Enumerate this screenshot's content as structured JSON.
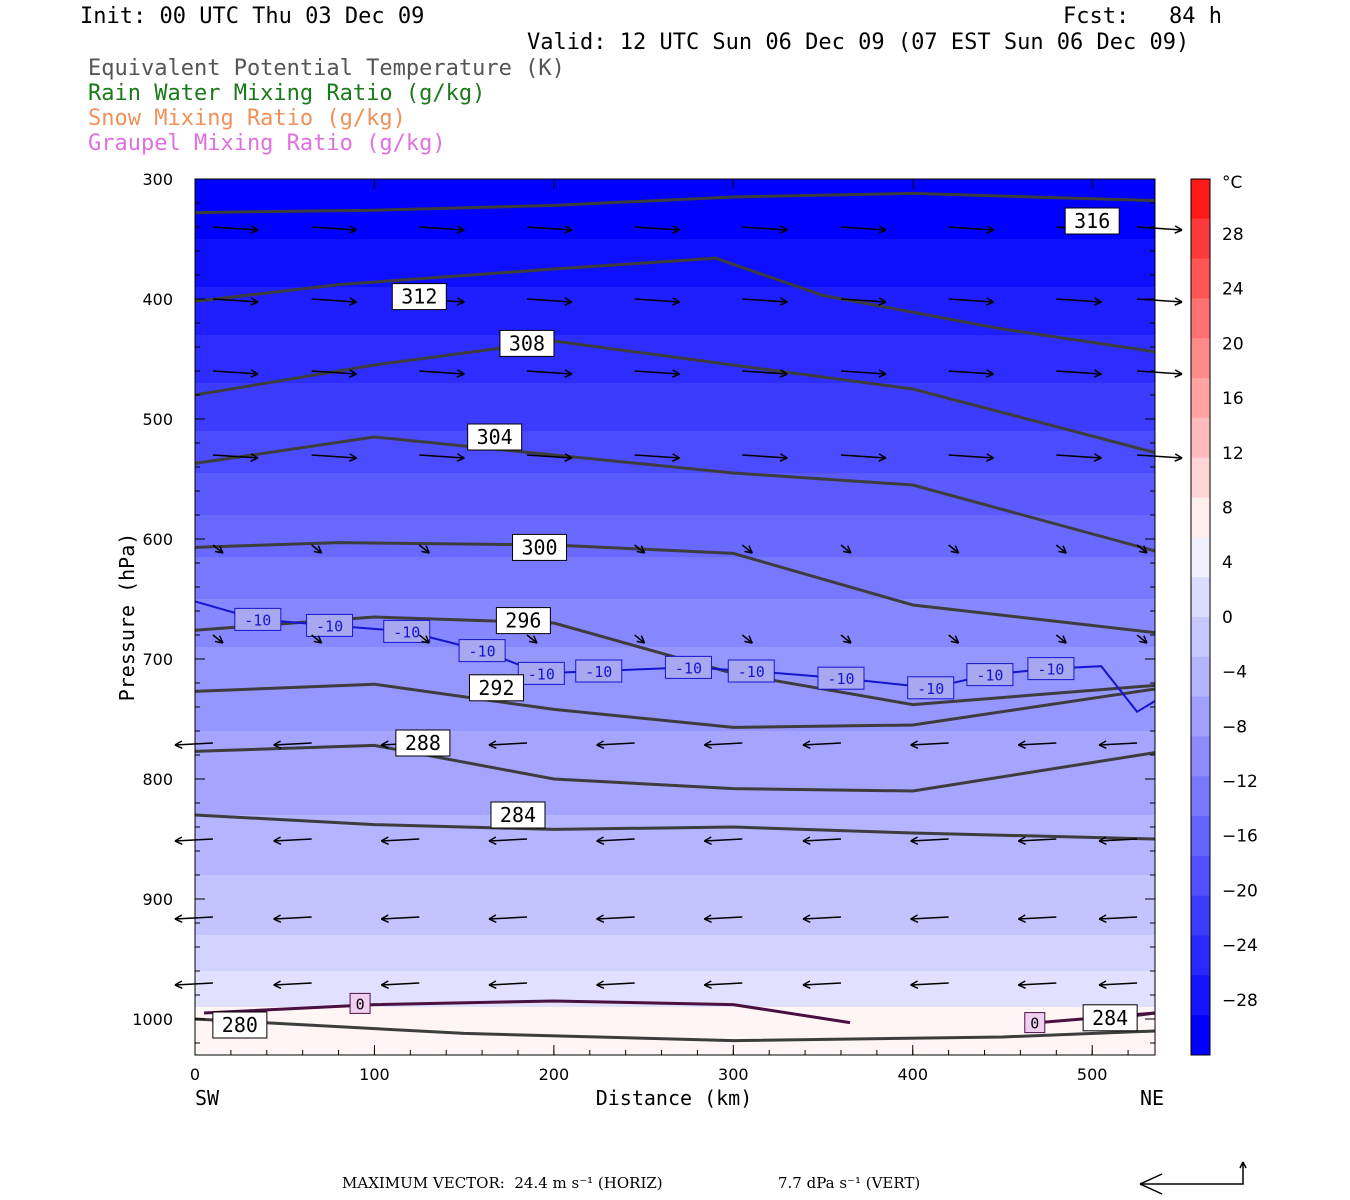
{
  "header": {
    "init": "Init: 00 UTC Thu 03 Dec 09",
    "fcst": "Fcst:   84 h",
    "valid": "Valid: 12 UTC Sun 06 Dec 09 (07 EST Sun 06 Dec 09)"
  },
  "legend": [
    {
      "text": "Equivalent Potential Temperature (K)",
      "color": "#555555"
    },
    {
      "text": "Rain Water Mixing Ratio (g/kg)",
      "color": "#1a7a1a"
    },
    {
      "text": "Snow Mixing Ratio (g/kg)",
      "color": "#f0905a"
    },
    {
      "text": "Graupel Mixing Ratio (g/kg)",
      "color": "#e070e0"
    }
  ],
  "footer": {
    "max_vector": "MAXIMUM VECTOR:  24.4 m s⁻¹ (HORIZ)",
    "vert": "7.7 dPa s⁻¹ (VERT)"
  },
  "chart_data": {
    "type": "heatmap",
    "title": "",
    "xlabel": "Distance (km)",
    "ylabel": "Pressure (hPa)",
    "xlim": [
      0,
      535
    ],
    "ylim": [
      1030,
      300
    ],
    "x_ticks": [
      0,
      100,
      200,
      300,
      400,
      500
    ],
    "y_ticks": [
      300,
      400,
      500,
      600,
      700,
      800,
      900,
      1000
    ],
    "x_end_labels": {
      "left": "SW",
      "right": "NE"
    },
    "colorbar": {
      "unit": "°C",
      "levels": [
        28,
        24,
        20,
        16,
        12,
        8,
        4,
        0,
        -4,
        -8,
        -12,
        -16,
        -20,
        -24,
        -28
      ],
      "colors": [
        "#ff1a1a",
        "#ff3a3a",
        "#ff5555",
        "#ff7070",
        "#ff8a8a",
        "#ffa3a3",
        "#ffbbbb",
        "#ffd5d5",
        "#ffeeee",
        "#f0f0ff",
        "#dcdcff",
        "#c8c8ff",
        "#b4b4ff",
        "#a0a0ff",
        "#8c8cff",
        "#7878ff",
        "#6464ff",
        "#5050ff",
        "#3c3cff",
        "#2828ff",
        "#1414ff",
        "#0000ff"
      ]
    },
    "temperature_bands": [
      {
        "temp": -32,
        "p_top": 300,
        "p_bottom": 350
      },
      {
        "temp": -30,
        "p_top": 350,
        "p_bottom": 390
      },
      {
        "temp": -28,
        "p_top": 390,
        "p_bottom": 430
      },
      {
        "temp": -26,
        "p_top": 430,
        "p_bottom": 470
      },
      {
        "temp": -24,
        "p_top": 470,
        "p_bottom": 510
      },
      {
        "temp": -22,
        "p_top": 510,
        "p_bottom": 545
      },
      {
        "temp": -20,
        "p_top": 545,
        "p_bottom": 580
      },
      {
        "temp": -18,
        "p_top": 580,
        "p_bottom": 615
      },
      {
        "temp": -16,
        "p_top": 615,
        "p_bottom": 650
      },
      {
        "temp": -14,
        "p_top": 650,
        "p_bottom": 690
      },
      {
        "temp": -12,
        "p_top": 690,
        "p_bottom": 760
      },
      {
        "temp": -10,
        "p_top": 760,
        "p_bottom": 830
      },
      {
        "temp": -8,
        "p_top": 830,
        "p_bottom": 880
      },
      {
        "temp": -6,
        "p_top": 880,
        "p_bottom": 930
      },
      {
        "temp": -4,
        "p_top": 930,
        "p_bottom": 960
      },
      {
        "temp": -2,
        "p_top": 960,
        "p_bottom": 990
      },
      {
        "temp": 0,
        "p_top": 990,
        "p_bottom": 1030
      }
    ],
    "theta_e_contours": [
      {
        "label": "316",
        "points": [
          [
            0,
            328
          ],
          [
            100,
            326
          ],
          [
            200,
            322
          ],
          [
            300,
            315
          ],
          [
            400,
            312
          ],
          [
            535,
            318
          ]
        ],
        "label_pos": [
          500,
          335
        ]
      },
      {
        "label": "312",
        "points": [
          [
            0,
            402
          ],
          [
            80,
            388
          ],
          [
            200,
            375
          ],
          [
            290,
            366
          ],
          [
            350,
            397
          ],
          [
            450,
            425
          ],
          [
            535,
            444
          ]
        ],
        "label_pos": [
          125,
          398
        ]
      },
      {
        "label": "308",
        "points": [
          [
            0,
            480
          ],
          [
            100,
            455
          ],
          [
            200,
            435
          ],
          [
            300,
            455
          ],
          [
            400,
            475
          ],
          [
            535,
            528
          ]
        ],
        "label_pos": [
          185,
          437
        ]
      },
      {
        "label": "304",
        "points": [
          [
            0,
            537
          ],
          [
            100,
            515
          ],
          [
            200,
            530
          ],
          [
            300,
            545
          ],
          [
            400,
            555
          ],
          [
            535,
            610
          ]
        ],
        "label_pos": [
          167,
          515
        ]
      },
      {
        "label": "300",
        "points": [
          [
            0,
            607
          ],
          [
            80,
            603
          ],
          [
            200,
            605
          ],
          [
            300,
            612
          ],
          [
            400,
            655
          ],
          [
            535,
            678
          ]
        ],
        "label_pos": [
          192,
          607
        ]
      },
      {
        "label": "296",
        "points": [
          [
            0,
            676
          ],
          [
            100,
            665
          ],
          [
            200,
            670
          ],
          [
            300,
            712
          ],
          [
            400,
            738
          ],
          [
            535,
            722
          ]
        ],
        "label_pos": [
          183,
          668
        ]
      },
      {
        "label": "292",
        "points": [
          [
            0,
            727
          ],
          [
            100,
            721
          ],
          [
            200,
            742
          ],
          [
            300,
            757
          ],
          [
            400,
            755
          ],
          [
            535,
            725
          ]
        ],
        "label_pos": [
          168,
          724
        ]
      },
      {
        "label": "288",
        "points": [
          [
            0,
            777
          ],
          [
            100,
            772
          ],
          [
            200,
            800
          ],
          [
            300,
            808
          ],
          [
            400,
            810
          ],
          [
            535,
            778
          ]
        ],
        "label_pos": [
          127,
          770
        ]
      },
      {
        "label": "284",
        "points": [
          [
            0,
            830
          ],
          [
            100,
            838
          ],
          [
            200,
            842
          ],
          [
            300,
            840
          ],
          [
            400,
            845
          ],
          [
            535,
            850
          ]
        ],
        "label_pos": [
          180,
          830
        ]
      },
      {
        "label": "280",
        "points": [
          [
            0,
            1000
          ],
          [
            150,
            1012
          ],
          [
            300,
            1018
          ],
          [
            450,
            1015
          ],
          [
            535,
            1010
          ]
        ],
        "label_pos": [
          25,
          1005
        ]
      },
      {
        "label": "284",
        "points": [
          [
            500,
            1002
          ],
          [
            535,
            995
          ]
        ],
        "label_pos": [
          510,
          999
        ]
      }
    ],
    "isotherm_labels": [
      {
        "text": "-10",
        "x": 35,
        "p": 667
      },
      {
        "text": "-10",
        "x": 75,
        "p": 672
      },
      {
        "text": "-10",
        "x": 118,
        "p": 677
      },
      {
        "text": "-10",
        "x": 160,
        "p": 693
      },
      {
        "text": "-10",
        "x": 193,
        "p": 712
      },
      {
        "text": "-10",
        "x": 225,
        "p": 710
      },
      {
        "text": "-10",
        "x": 275,
        "p": 707
      },
      {
        "text": "-10",
        "x": 310,
        "p": 710
      },
      {
        "text": "-10",
        "x": 360,
        "p": 716
      },
      {
        "text": "-10",
        "x": 410,
        "p": 724
      },
      {
        "text": "-10",
        "x": 443,
        "p": 713
      },
      {
        "text": "-10",
        "x": 477,
        "p": 708
      }
    ],
    "zero_isotherm_label": {
      "text": "0",
      "x": 92,
      "p": 987
    },
    "zero_isotherm_label2": {
      "text": "0",
      "x": 468,
      "p": 1003
    },
    "max_vector_arrow": {
      "label": ""
    }
  }
}
